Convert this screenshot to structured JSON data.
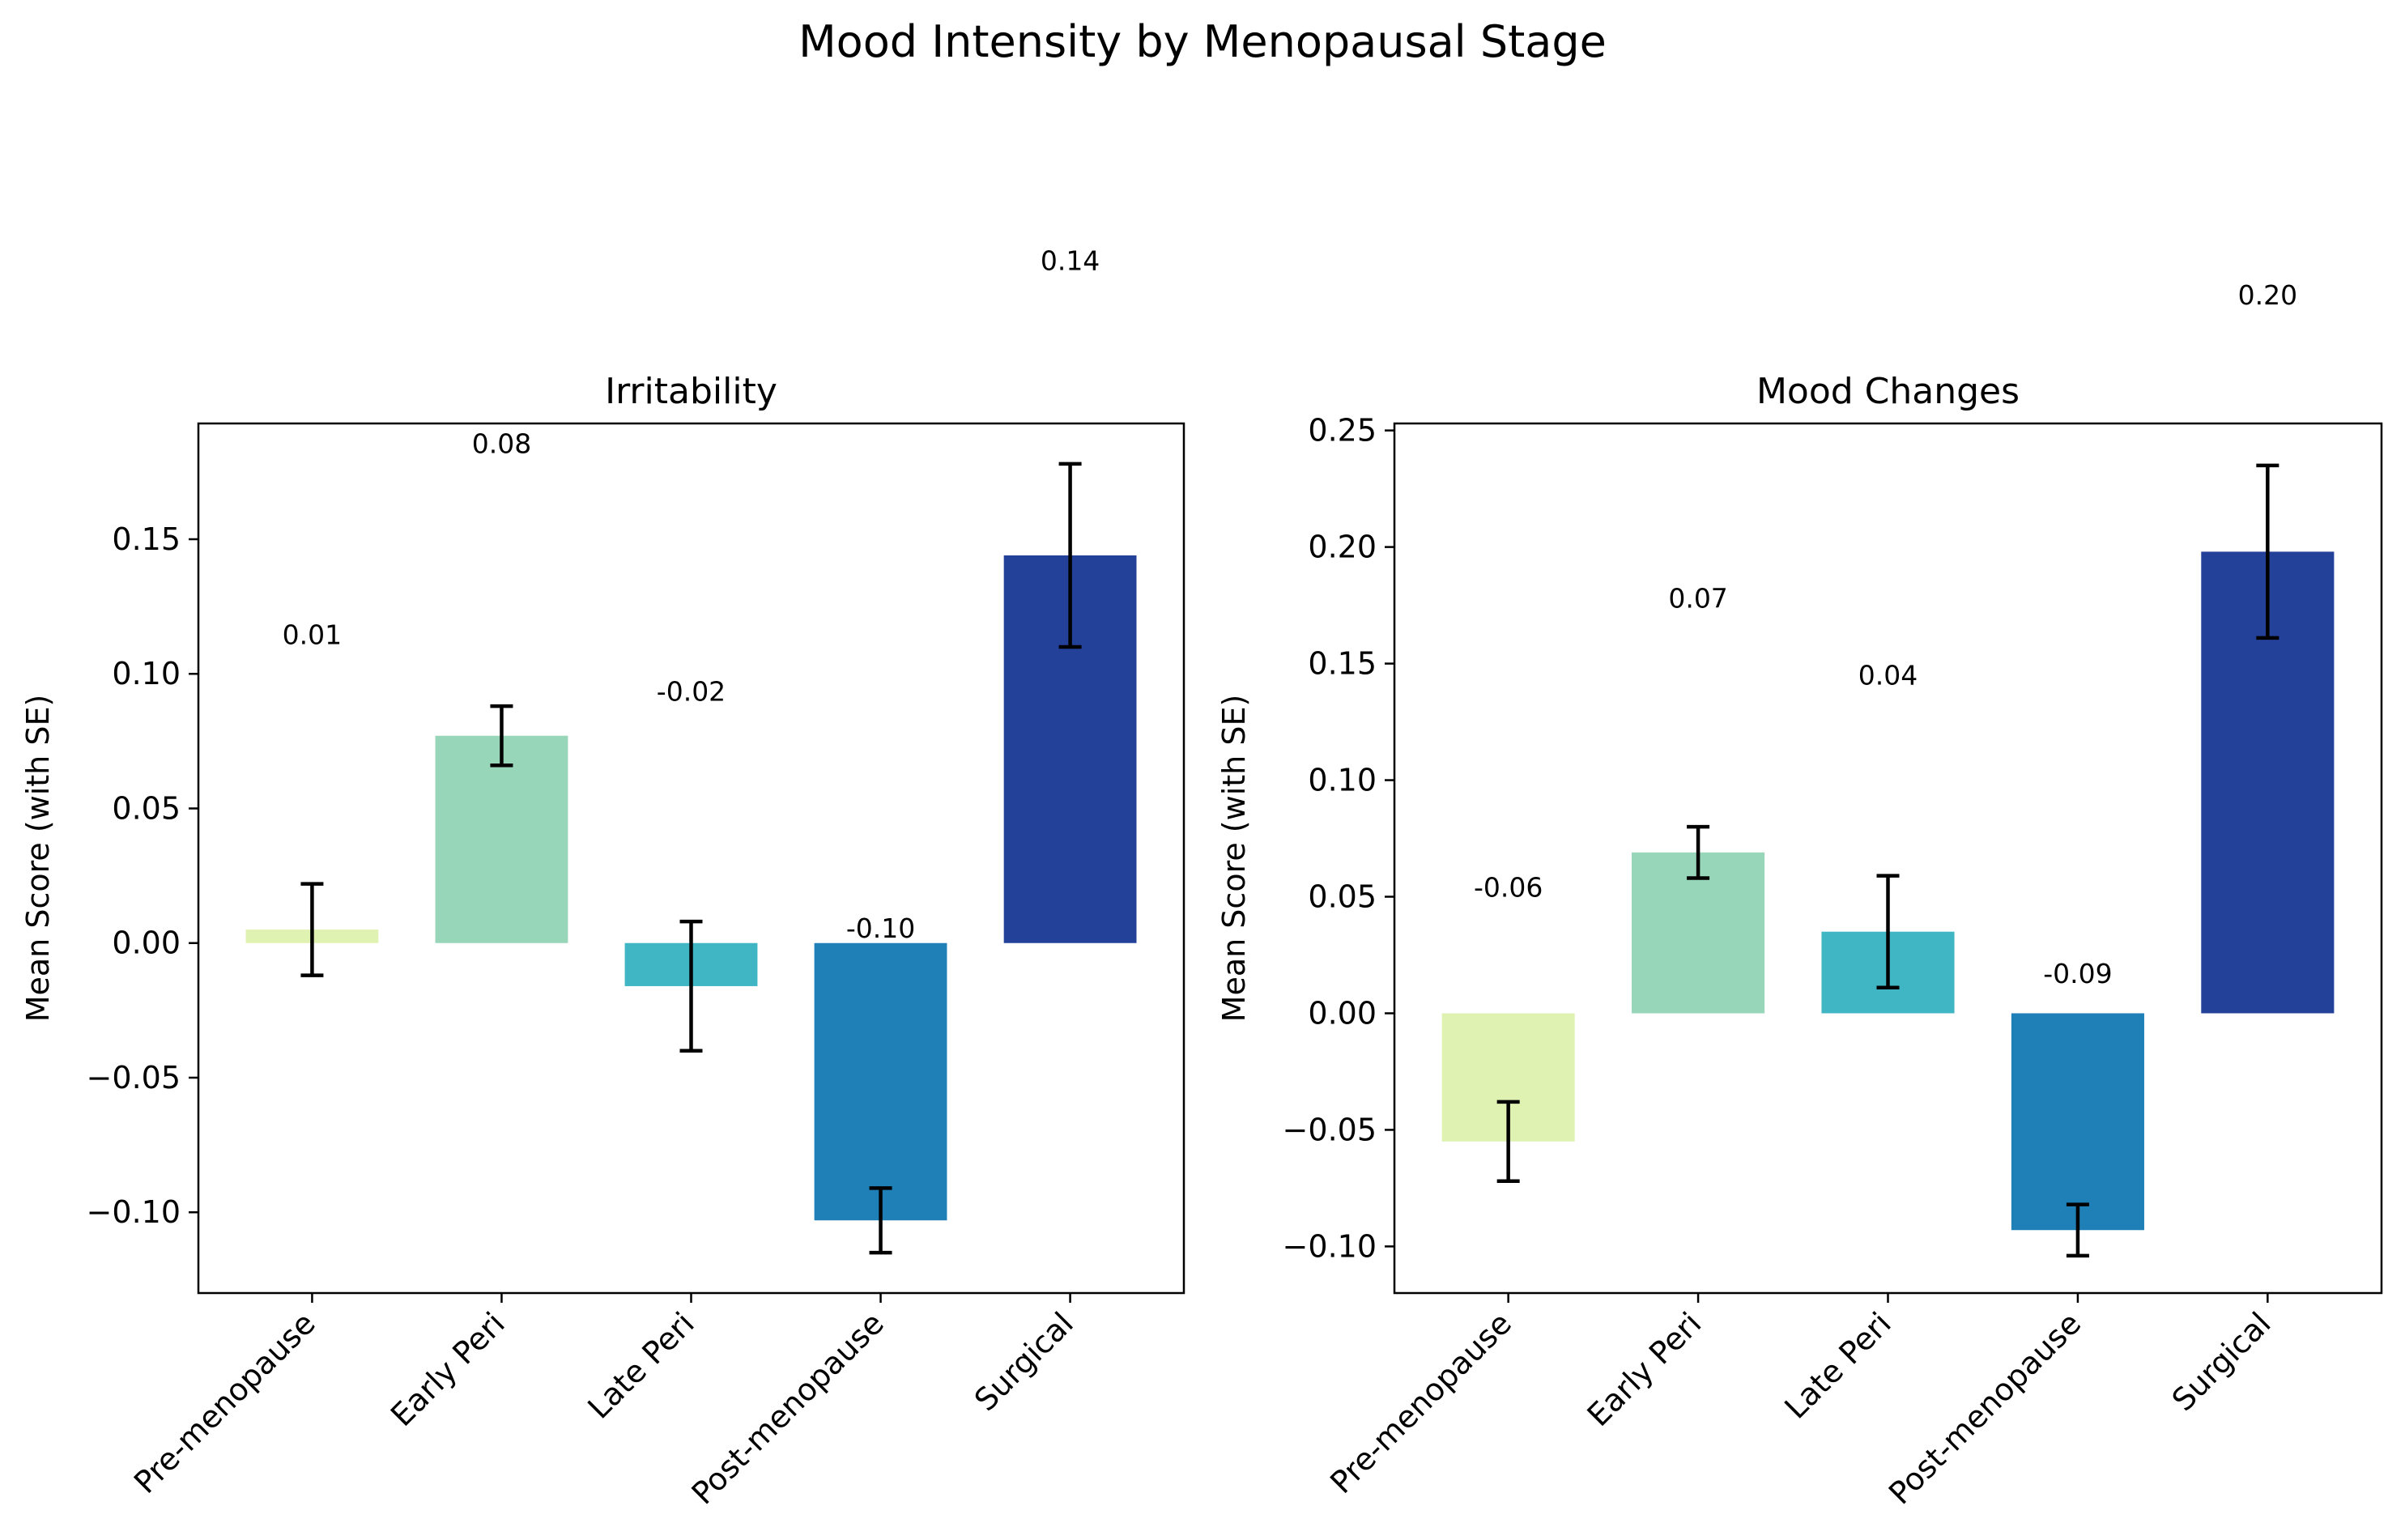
{
  "figure": {
    "title": "Mood Intensity by Menopausal Stage"
  },
  "chart_data": [
    {
      "type": "bar",
      "title": "Irritability",
      "xlabel": "",
      "ylabel": "Mean Score (with SE)",
      "categories": [
        "Pre-menopause",
        "Early Peri",
        "Late Peri",
        "Post-menopause",
        "Surgical"
      ],
      "values": [
        0.005,
        0.077,
        -0.016,
        -0.103,
        0.144
      ],
      "errors": [
        0.017,
        0.011,
        0.024,
        0.012,
        0.034
      ],
      "data_labels": [
        "0.01",
        "0.08",
        "-0.02",
        "-0.10",
        "0.14"
      ],
      "label_values": [
        0.111,
        0.182,
        0.09,
        0.002,
        0.25
      ],
      "colors": [
        "#dff2b2",
        "#97d6b8",
        "#40b5c4",
        "#1f80b8",
        "#24419a"
      ],
      "ylim": [
        -0.13,
        0.193
      ],
      "yticks": [
        -0.1,
        -0.05,
        0.0,
        0.05,
        0.1,
        0.15
      ],
      "ytick_labels": [
        "−0.10",
        "−0.05",
        "0.00",
        "0.05",
        "0.10",
        "0.15"
      ],
      "grid": false
    },
    {
      "type": "bar",
      "title": "Mood Changes",
      "xlabel": "",
      "ylabel": "Mean Score (with SE)",
      "categories": [
        "Pre-menopause",
        "Early Peri",
        "Late Peri",
        "Post-menopause",
        "Surgical"
      ],
      "values": [
        -0.055,
        0.069,
        0.035,
        -0.093,
        0.198
      ],
      "errors": [
        0.017,
        0.011,
        0.024,
        0.011,
        0.037
      ],
      "data_labels": [
        "-0.06",
        "0.07",
        "0.04",
        "-0.09",
        "0.20"
      ],
      "label_values": [
        0.05,
        0.174,
        0.141,
        0.013,
        0.304
      ],
      "colors": [
        "#dff2b2",
        "#97d6b8",
        "#40b5c4",
        "#1f80b8",
        "#24419a"
      ],
      "ylim": [
        -0.12,
        0.253
      ],
      "yticks": [
        -0.1,
        -0.05,
        0.0,
        0.05,
        0.1,
        0.15,
        0.2,
        0.25
      ],
      "ytick_labels": [
        "−0.10",
        "−0.05",
        "0.00",
        "0.05",
        "0.10",
        "0.15",
        "0.20",
        "0.25"
      ],
      "grid": false
    }
  ]
}
